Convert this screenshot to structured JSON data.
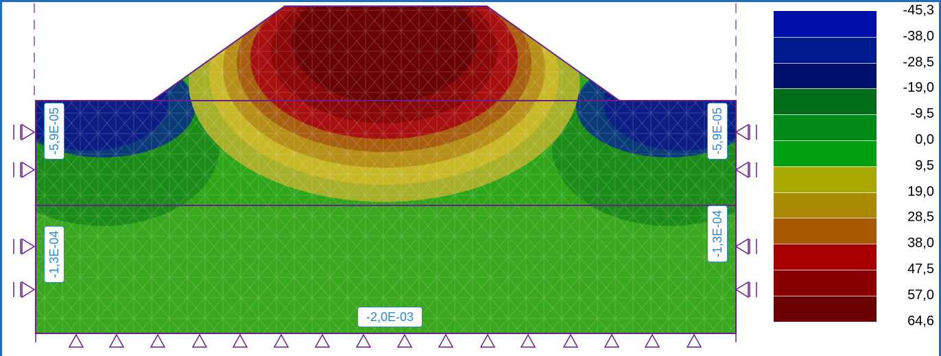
{
  "diagram": {
    "labels": {
      "left_top": "-5,9E-05",
      "right_top": "-5,9E-05",
      "left_bottom": "-1,3E-04",
      "right_bottom": "-1,3E-04",
      "bottom_center": "-2,0E-03"
    }
  },
  "legend": {
    "values": [
      "-45,3",
      "-38,0",
      "-28,5",
      "-19,0",
      "-9,5",
      "0,0",
      "9,5",
      "19,0",
      "28,5",
      "38,0",
      "47,5",
      "57,0",
      "64,6"
    ],
    "colors": [
      "#0010a8",
      "#001b8e",
      "#00106a",
      "#006e18",
      "#008a18",
      "#00a010",
      "#a8a800",
      "#a88a00",
      "#a85a00",
      "#a80000",
      "#8a0000",
      "#6a0000"
    ]
  },
  "colors": {
    "frame": "#1f6fbf",
    "outline": "#6a1f8a",
    "label": "#2a8ad6"
  }
}
